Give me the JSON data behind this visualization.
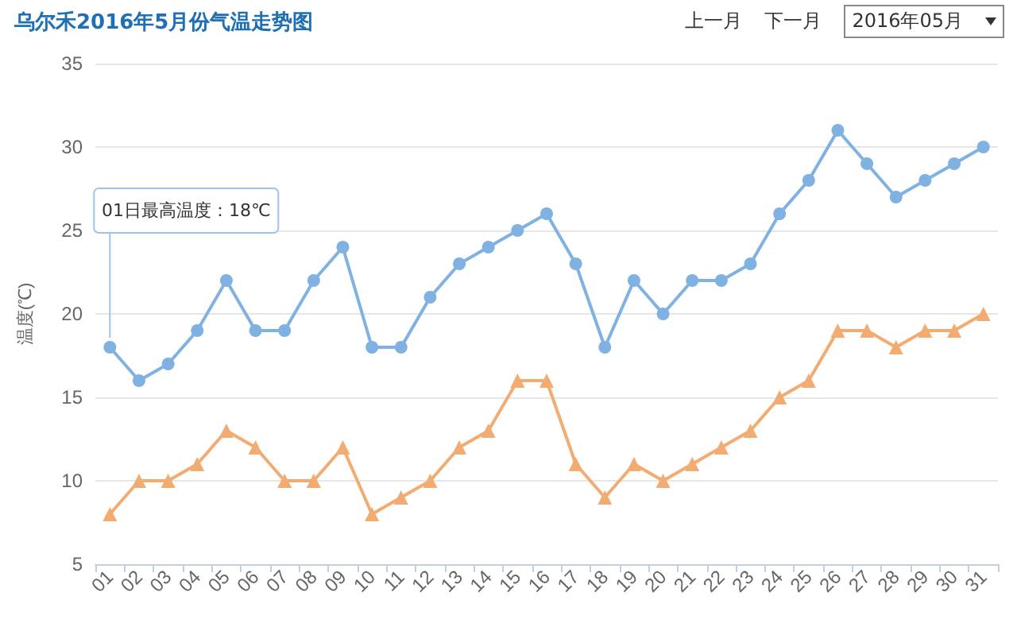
{
  "chart_data": {
    "type": "line",
    "title": "乌尔禾2016年5月份气温走势图",
    "ylabel": "温度(℃)",
    "categories": [
      "01",
      "02",
      "03",
      "04",
      "05",
      "06",
      "07",
      "08",
      "09",
      "10",
      "11",
      "12",
      "13",
      "14",
      "15",
      "16",
      "17",
      "18",
      "19",
      "20",
      "21",
      "22",
      "23",
      "24",
      "25",
      "26",
      "27",
      "28",
      "29",
      "30",
      "31"
    ],
    "series": [
      {
        "color": "#7fb2e2",
        "marker": "circle",
        "values": [
          18,
          16,
          17,
          19,
          22,
          19,
          19,
          22,
          24,
          18,
          18,
          21,
          23,
          24,
          25,
          26,
          23,
          18,
          22,
          20,
          22,
          22,
          23,
          26,
          28,
          31,
          29,
          27,
          28,
          29,
          30
        ]
      },
      {
        "color": "#f2ab70",
        "marker": "triangle",
        "values": [
          8,
          10,
          10,
          11,
          13,
          12,
          10,
          10,
          12,
          8,
          9,
          10,
          12,
          13,
          16,
          16,
          11,
          9,
          11,
          10,
          11,
          12,
          13,
          15,
          16,
          19,
          19,
          18,
          19,
          19,
          20
        ]
      }
    ],
    "ylim": [
      5,
      35
    ],
    "yticks": [
      5,
      10,
      15,
      20,
      25,
      30,
      35
    ],
    "grid": "y",
    "annotations": [
      "上一月",
      "下一月",
      "2016年05月",
      {
        "text": "01日最高温度：18℃",
        "x": "01",
        "y": 18
      }
    ]
  }
}
